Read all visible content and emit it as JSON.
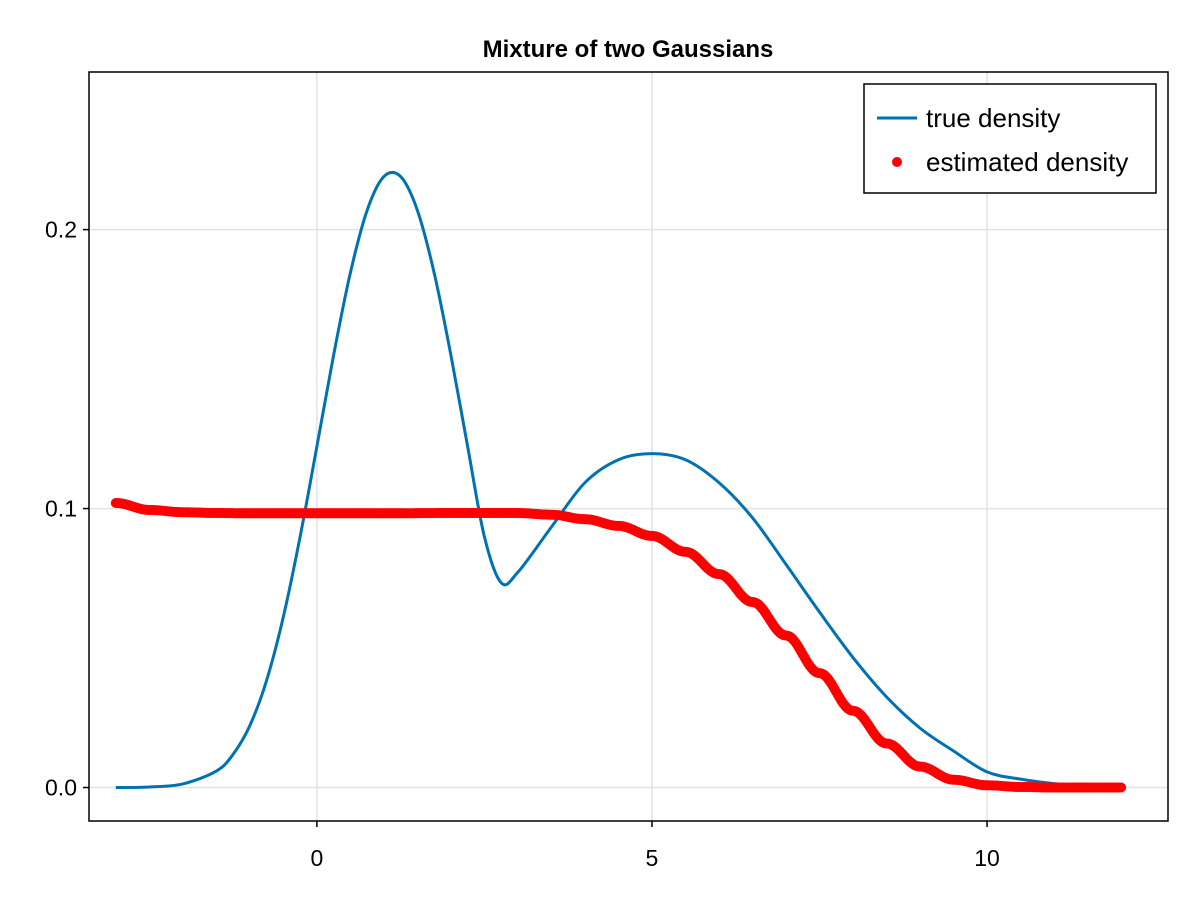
{
  "chart_data": {
    "type": "line",
    "title": "Mixture of two Gaussians",
    "xlabel": "",
    "ylabel": "",
    "xlim": [
      -3.4,
      12.7
    ],
    "ylim": [
      -0.012,
      0.2565
    ],
    "x_ticks": [
      0,
      5,
      10
    ],
    "x_tick_labels": [
      "0",
      "5",
      "10"
    ],
    "y_ticks": [
      0.0,
      0.1,
      0.2
    ],
    "y_tick_labels": [
      "0.0",
      "0.1",
      "0.2"
    ],
    "grid": true,
    "legend_position": "top-right",
    "series": [
      {
        "name": "true density",
        "style": "line",
        "color": "#0072b2",
        "x": [
          -3,
          -2.5,
          -2,
          -1.5,
          -1.25,
          -1,
          -0.75,
          -0.5,
          -0.25,
          0,
          0.25,
          0.5,
          0.75,
          1,
          1.25,
          1.5,
          1.75,
          2,
          2.25,
          2.5,
          2.75,
          3,
          3.5,
          4,
          4.5,
          5,
          5.5,
          6,
          6.5,
          7,
          7.5,
          8,
          8.5,
          9,
          9.5,
          10,
          10.5,
          11,
          11.5,
          12
        ],
        "y": [
          0.0,
          0.0002,
          0.0013,
          0.0059,
          0.0119,
          0.0222,
          0.0384,
          0.0612,
          0.0899,
          0.1222,
          0.155,
          0.1845,
          0.2069,
          0.219,
          0.219,
          0.2069,
          0.1845,
          0.155,
          0.1222,
          0.0899,
          0.0734,
          0.0772,
          0.0934,
          0.1093,
          0.1175,
          0.1197,
          0.1175,
          0.1093,
          0.0967,
          0.08,
          0.0629,
          0.0466,
          0.0325,
          0.0213,
          0.0131,
          0.0056,
          0.003,
          0.0014,
          0.0006,
          0.0002
        ]
      },
      {
        "name": "estimated density",
        "style": "scatter",
        "color": "#ff0000",
        "x": [
          -3,
          -2.5,
          -2,
          -1.5,
          -1,
          0,
          1,
          2,
          3,
          3.5,
          4,
          4.5,
          5,
          5.5,
          6,
          6.5,
          7,
          7.5,
          8,
          8.5,
          9,
          9.5,
          10,
          10.5,
          11,
          11.5,
          12
        ],
        "y": [
          0.102,
          0.0995,
          0.0987,
          0.0984,
          0.0983,
          0.0983,
          0.0983,
          0.0984,
          0.0984,
          0.0978,
          0.0962,
          0.0938,
          0.0902,
          0.0845,
          0.0765,
          0.0665,
          0.0545,
          0.041,
          0.0275,
          0.0158,
          0.0075,
          0.0028,
          0.0008,
          0.0002,
          0.0,
          0.0,
          0.0
        ]
      }
    ]
  }
}
